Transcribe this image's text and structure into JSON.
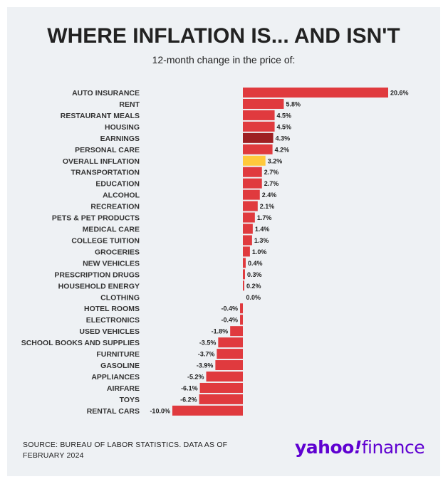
{
  "header": {
    "title": "WHERE INFLATION IS... AND ISN'T",
    "subtitle": "12-month change in the price of:"
  },
  "footer": {
    "source": "SOURCE: BUREAU OF LABOR STATISTICS. DATA AS OF FEBRUARY 2024",
    "logo_yahoo": "yahoo",
    "logo_bang": "!",
    "logo_finance": "finance"
  },
  "colors": {
    "default": "#e03a3e",
    "earnings": "#9e1f22",
    "overall": "#ffc93c",
    "background": "#eef1f4",
    "brand": "#5f01d1"
  },
  "chart_data": {
    "type": "bar",
    "orientation": "horizontal",
    "title": "WHERE INFLATION IS... AND ISN'T",
    "subtitle": "12-month change in the price of:",
    "categories": [
      "AUTO INSURANCE",
      "RENT",
      "RESTAURANT MEALS",
      "HOUSING",
      "EARNINGS",
      "PERSONAL CARE",
      "OVERALL INFLATION",
      "TRANSPORTATION",
      "EDUCATION",
      "ALCOHOL",
      "RECREATION",
      "PETS & PET PRODUCTS",
      "MEDICAL CARE",
      "COLLEGE TUITION",
      "GROCERIES",
      "NEW VEHICLES",
      "PRESCRIPTION DRUGS",
      "HOUSEHOLD ENERGY",
      "CLOTHING",
      "HOTEL ROOMS",
      "ELECTRONICS",
      "USED VEHICLES",
      "SCHOOL BOOKS AND SUPPLIES",
      "FURNITURE",
      "GASOLINE",
      "APPLIANCES",
      "AIRFARE",
      "TOYS",
      "RENTAL CARS"
    ],
    "values": [
      20.6,
      5.8,
      4.5,
      4.5,
      4.3,
      4.2,
      3.2,
      2.7,
      2.7,
      2.4,
      2.1,
      1.7,
      1.4,
      1.3,
      1.0,
      0.4,
      0.3,
      0.2,
      0.0,
      -0.4,
      -0.4,
      -1.8,
      -3.5,
      -3.7,
      -3.9,
      -5.2,
      -6.1,
      -6.2,
      -10.0
    ],
    "labels": [
      "20.6%",
      "5.8%",
      "4.5%",
      "4.5%",
      "4.3%",
      "4.2%",
      "3.2%",
      "2.7%",
      "2.7%",
      "2.4%",
      "2.1%",
      "1.7%",
      "1.4%",
      "1.3%",
      "1.0%",
      "0.4%",
      "0.3%",
      "0.2%",
      "0.0%",
      "-0.4%",
      "-0.4%",
      "-1.8%",
      "-3.5%",
      "-3.7%",
      "-3.9%",
      "-5.2%",
      "-6.1%",
      "-6.2%",
      "-10.0%"
    ],
    "highlight": {
      "EARNINGS": "earnings",
      "OVERALL INFLATION": "overall"
    },
    "xlim": [
      -10.0,
      20.6
    ],
    "grid": false,
    "legend": "none"
  }
}
